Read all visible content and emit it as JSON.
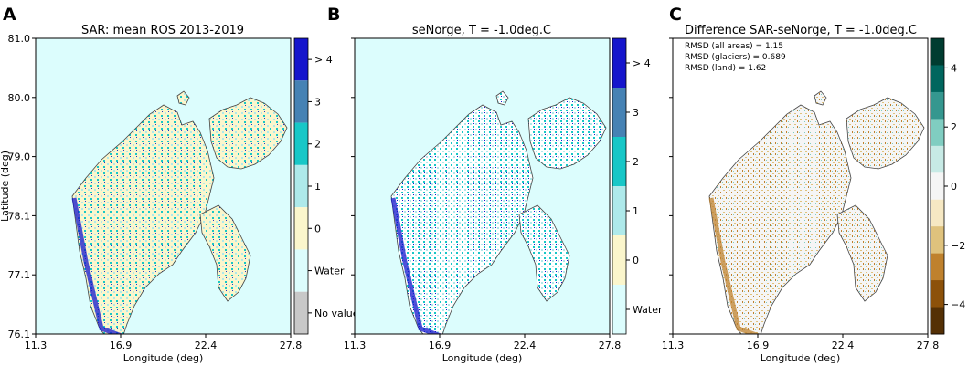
{
  "chart_data": [
    {
      "type": "heatmap",
      "panel": "A",
      "title": "SAR: mean ROS 2013-2019",
      "xlabel": "Longitude (deg)",
      "ylabel": "Latitude (deg)",
      "xticks": [
        "11.3",
        "16.9",
        "22.4",
        "27.8"
      ],
      "yticks": [
        "81.0",
        "80.0",
        "79.0",
        "78.1",
        "77.1",
        "76.1"
      ],
      "xlim": [
        11.3,
        27.8
      ],
      "ylim": [
        76.1,
        81.0
      ],
      "colorbar": {
        "labels": [
          "> 4",
          "3",
          "2",
          "1",
          "0",
          "Water",
          "No value"
        ],
        "colors": [
          "#1515cc",
          "#1f37c8",
          "#4682b4",
          "#18c7c7",
          "#aee9ea",
          "#fbf6cc",
          "#dcfdfd",
          "#c8c8c8"
        ]
      },
      "background": "#dcfdfd",
      "land_color": "#fbf6cc"
    },
    {
      "type": "heatmap",
      "panel": "B",
      "title": "seNorge, T = -1.0deg.C",
      "xlabel": "Longitude (deg)",
      "xticks": [
        "11.3",
        "16.9",
        "22.4",
        "27.8"
      ],
      "xlim": [
        11.3,
        27.8
      ],
      "ylim": [
        76.1,
        81.0
      ],
      "colorbar": {
        "labels": [
          "> 4",
          "3",
          "2",
          "1",
          "0",
          "Water"
        ],
        "colors": [
          "#1515cc",
          "#4682b4",
          "#18c7c7",
          "#aee9ea",
          "#fbf6cc",
          "#dcfdfd"
        ]
      },
      "background": "#dcfdfd",
      "land_color": "#fbf6cc"
    },
    {
      "type": "heatmap",
      "panel": "C",
      "title": "Difference SAR-seNorge, T = -1.0deg.C",
      "xlabel": "Longitude (deg)",
      "xticks": [
        "11.3",
        "16.9",
        "22.4",
        "27.8"
      ],
      "xlim": [
        11.3,
        27.8
      ],
      "ylim": [
        76.1,
        81.0
      ],
      "annotations": [
        "RMSD (all areas) = 1.15",
        "RMSD (glaciers) = 0.689",
        "RMSD (land) = 1.62"
      ],
      "colorbar": {
        "ticks": [
          "4",
          "2",
          "0",
          "−2",
          "−4"
        ],
        "range": [
          -5,
          5
        ],
        "colors": [
          "#003c30",
          "#01665e",
          "#35978f",
          "#80cdc1",
          "#c7eae5",
          "#f5f5f5",
          "#f6e8c3",
          "#dfc27d",
          "#bf812d",
          "#8c510a",
          "#543005"
        ]
      },
      "background": "#ffffff",
      "land_color": "#f5f5f5"
    }
  ]
}
